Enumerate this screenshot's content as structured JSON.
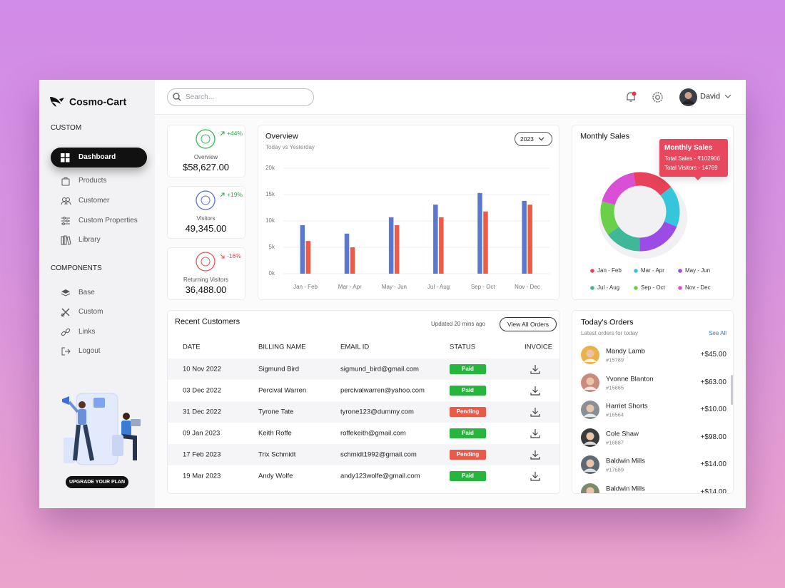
{
  "brand": "Cosmo-Cart",
  "search_placeholder": "Search...",
  "user": "David",
  "sidebar": {
    "sections": [
      {
        "title": "CUSTOM",
        "items": [
          "Dashboard",
          "Products",
          "Customer",
          "Custom Properties",
          "Library"
        ]
      },
      {
        "title": "COMPONENTS",
        "items": [
          "Base",
          "Custom",
          "Links",
          "Logout"
        ]
      }
    ],
    "upgrade": "UPGRADE YOUR PLAN"
  },
  "stats": [
    {
      "label": "Overview",
      "value": "$58,627.00",
      "change": "+44%"
    },
    {
      "label": "Visitors",
      "value": "49,345.00",
      "change": "+19%"
    },
    {
      "label": "Returning Visitors",
      "value": "36,488.00",
      "change": "-16%"
    }
  ],
  "chart_data": [
    {
      "type": "bar",
      "title": "Overview",
      "subtitle": "Today vs Yesterday",
      "selector": "2023",
      "categories": [
        "Jan - Feb",
        "Mar - Apr",
        "May - Jun",
        "Jul - Aug",
        "Sep - Oct",
        "Nov - Dec"
      ],
      "series": [
        {
          "color": "#5b78d0",
          "values": [
            9200,
            7600,
            10700,
            13100,
            15300,
            13800
          ]
        },
        {
          "color": "#ef5a48",
          "values": [
            6200,
            5000,
            9200,
            10700,
            11800,
            13100
          ]
        }
      ],
      "ylim": [
        0,
        20000
      ],
      "yticks": [
        {
          "value": 0,
          "label": "0k"
        },
        {
          "value": 5000,
          "label": "5k"
        },
        {
          "value": 10000,
          "label": "10k"
        },
        {
          "value": 15000,
          "label": "15k"
        },
        {
          "value": 20000,
          "label": "20k"
        }
      ],
      "grid": true
    },
    {
      "type": "pie",
      "title": "Monthly Sales",
      "categories": [
        "Jan - Feb",
        "Mar - Apr",
        "May - Jun",
        "Jul - Aug",
        "Sep - Oct",
        "Nov - Dec"
      ],
      "values": [
        17,
        17,
        19,
        15,
        14,
        18
      ],
      "colors": [
        "#e8425a",
        "#35c6dc",
        "#9b4be6",
        "#3fb89a",
        "#6ccf4a",
        "#d94fd6"
      ],
      "legend": "bottom",
      "tooltip": {
        "title": "Monthly Sales",
        "lines": [
          "Total Sales - ₹102906",
          "Total Visitors - 14769"
        ]
      }
    }
  ],
  "customers": {
    "title": "Recent Customers",
    "updated": "Updated 20 mins ago",
    "button": "View All Orders",
    "columns": [
      "DATE",
      "BILLING NAME",
      "EMAIL ID",
      "STATUS",
      "INVOICE"
    ],
    "rows": [
      [
        "10 Nov 2022",
        "Sigmund Bird",
        "sigmund_bird@gmail.com",
        "Paid"
      ],
      [
        "03 Dec 2022",
        "Percival Warren",
        "percivalwarren@yahoo.com",
        "Paid"
      ],
      [
        "31 Dec 2022",
        "Tyrone Tate",
        "tyrone123@dummy.com",
        "Pending"
      ],
      [
        "09 Jan 2023",
        "Keith Roffe",
        "roffekeith@gmail.com",
        "Paid"
      ],
      [
        "17 Feb 2023",
        "Trix Schmidt",
        "schmidt1992@gmail.com",
        "Pending"
      ],
      [
        "19 Mar 2023",
        "Andy Wolfe",
        "andy123wolfe@gmail.com",
        "Paid"
      ]
    ]
  },
  "orders": {
    "title": "Today's Orders",
    "subtitle": "Latest orders for today",
    "link": "See All",
    "items": [
      {
        "name": "Mandy Lamb",
        "id": "#15789",
        "amount": "+$45.00"
      },
      {
        "name": "Yvonne Blanton",
        "id": "#15865",
        "amount": "+$63.00"
      },
      {
        "name": "Harriet Shorts",
        "id": "#16564",
        "amount": "+$10.00"
      },
      {
        "name": "Cole Shaw",
        "id": "#16887",
        "amount": "+$98.00"
      },
      {
        "name": "Baldwin Mills",
        "id": "#17689",
        "amount": "+$14.00"
      },
      {
        "name": "Baldwin Mills",
        "amount": "+$14.00"
      }
    ]
  }
}
